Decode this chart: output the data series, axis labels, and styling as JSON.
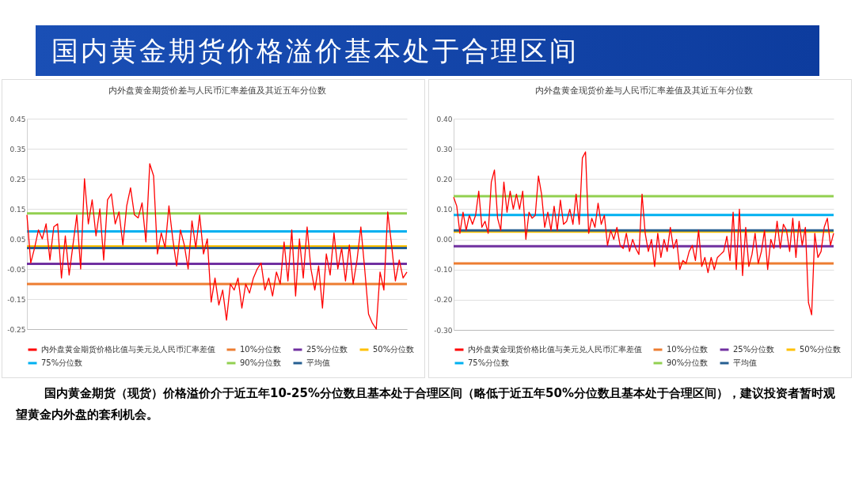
{
  "chart_data": [
    {
      "type": "other",
      "title": "国内黄金期货价格溢价基本处于合理区间"
    },
    {
      "type": "line",
      "title": "内外盘黄金期货价差与人民币汇率差值及其近五年分位数",
      "categories": [
        null,
        null,
        null,
        null,
        null,
        null,
        null,
        null,
        null,
        null,
        null,
        null,
        null,
        null,
        null,
        null,
        null,
        null,
        null,
        null,
        null,
        null,
        null,
        null,
        null,
        null,
        null,
        null,
        null,
        null,
        null,
        null,
        null,
        null,
        null,
        null,
        null,
        null,
        null,
        null,
        null,
        null,
        null,
        null,
        null,
        null,
        null,
        null,
        null,
        null,
        null,
        null,
        null,
        null,
        null,
        null,
        null,
        null,
        null,
        null,
        null,
        null,
        null,
        null,
        null,
        null,
        null,
        null,
        null,
        null,
        null,
        null,
        null,
        null,
        null,
        null,
        null,
        null,
        null,
        null,
        null,
        null,
        null,
        null,
        null,
        null,
        null,
        null,
        null,
        null,
        null,
        null,
        null,
        null,
        null,
        null,
        null,
        null,
        null,
        null
      ],
      "series": [
        {
          "name": "内外盘黄金期货价格比值与美元兑人民币汇率差值",
          "color": "#ff0000",
          "values": [
            0.13,
            -0.03,
            0.02,
            0.08,
            0.05,
            0.1,
            -0.02,
            0.09,
            0.1,
            -0.08,
            0.06,
            -0.07,
            0.03,
            0.13,
            -0.05,
            0.25,
            0.1,
            0.18,
            0.06,
            0.15,
            -0.02,
            0.18,
            0.2,
            0.1,
            0.14,
            0.03,
            0.16,
            0.22,
            0.13,
            0.12,
            0.17,
            0.04,
            0.3,
            0.26,
            0.0,
            0.07,
            0.02,
            0.16,
            0.05,
            -0.04,
            0.08,
            0.03,
            -0.05,
            0.11,
            0.02,
            0.13,
            0.0,
            0.05,
            -0.16,
            -0.08,
            -0.17,
            -0.12,
            -0.22,
            -0.1,
            -0.12,
            -0.08,
            -0.18,
            -0.1,
            -0.13,
            -0.08,
            -0.05,
            -0.03,
            -0.12,
            -0.08,
            -0.14,
            -0.06,
            -0.1,
            0.04,
            -0.09,
            0.08,
            -0.14,
            0.05,
            -0.08,
            0.09,
            -0.05,
            -0.12,
            -0.04,
            -0.18,
            0.0,
            -0.07,
            0.07,
            -0.05,
            0.02,
            -0.09,
            0.03,
            -0.1,
            -0.02,
            0.09,
            -0.05,
            -0.2,
            -0.23,
            -0.25,
            -0.06,
            -0.12,
            0.14,
            0.03,
            -0.09,
            -0.02,
            -0.08,
            -0.06
          ]
        }
      ],
      "ref_lines": [
        {
          "axis": "y",
          "value": -0.1,
          "label": "10%分位数",
          "color": "#ed7d31"
        },
        {
          "axis": "y",
          "value": -0.033,
          "label": "25%分位数",
          "color": "#7030a0"
        },
        {
          "axis": "y",
          "value": 0.025,
          "label": "50%分位数",
          "color": "#ffc000"
        },
        {
          "axis": "y",
          "value": 0.075,
          "label": "75%分位数",
          "color": "#00b0f0"
        },
        {
          "axis": "y",
          "value": 0.135,
          "label": "90%分位数",
          "color": "#92d050"
        },
        {
          "axis": "y",
          "value": 0.02,
          "label": "平均值",
          "color": "#255e91"
        }
      ],
      "ylim": [
        -0.25,
        0.45
      ],
      "yticks": [
        -0.25,
        -0.15,
        -0.05,
        0.05,
        0.15,
        0.25,
        0.35,
        0.45
      ],
      "grid": "y",
      "legend": "bottom",
      "tick_labels": "y"
    },
    {
      "type": "line",
      "title": "内外盘黄金现货价差与人民币汇率差值及其近五年分位数",
      "categories": [
        null,
        null,
        null,
        null,
        null,
        null,
        null,
        null,
        null,
        null,
        null,
        null,
        null,
        null,
        null,
        null,
        null,
        null,
        null,
        null,
        null,
        null,
        null,
        null,
        null,
        null,
        null,
        null,
        null,
        null,
        null,
        null,
        null,
        null,
        null,
        null,
        null,
        null,
        null,
        null,
        null,
        null,
        null,
        null,
        null,
        null,
        null,
        null,
        null,
        null,
        null,
        null,
        null,
        null,
        null,
        null,
        null,
        null,
        null,
        null,
        null,
        null,
        null,
        null,
        null,
        null,
        null,
        null,
        null,
        null,
        null,
        null,
        null,
        null,
        null,
        null,
        null,
        null,
        null,
        null,
        null,
        null,
        null,
        null,
        null,
        null,
        null,
        null,
        null,
        null,
        null,
        null,
        null,
        null,
        null,
        null,
        null,
        null,
        null,
        null,
        null,
        null,
        null,
        null,
        null,
        null,
        null,
        null,
        null,
        null,
        null,
        null,
        null,
        null,
        null,
        null,
        null,
        null,
        null,
        null,
        null,
        null
      ],
      "series": [
        {
          "name": "内外盘黄金现货价格比值与美元兑人民币汇率差值",
          "color": "#ff0000",
          "values": [
            0.14,
            0.11,
            0.02,
            0.09,
            0.03,
            0.08,
            0.05,
            0.08,
            0.16,
            0.04,
            0.06,
            0.02,
            0.19,
            0.23,
            0.07,
            0.03,
            0.19,
            0.09,
            0.16,
            0.1,
            0.15,
            0.1,
            0.16,
            0.0,
            0.09,
            0.07,
            0.08,
            0.21,
            0.15,
            0.04,
            0.09,
            0.03,
            0.11,
            0.03,
            0.13,
            0.05,
            0.06,
            0.1,
            0.05,
            0.15,
            0.05,
            0.27,
            0.29,
            0.02,
            0.07,
            0.04,
            0.12,
            0.05,
            0.08,
            -0.02,
            0.03,
            0.0,
            0.04,
            -0.02,
            -0.03,
            0.02,
            -0.04,
            0.0,
            -0.03,
            -0.05,
            0.15,
            0.02,
            -0.04,
            0.0,
            -0.09,
            0.02,
            -0.06,
            0.0,
            -0.04,
            0.04,
            -0.03,
            0.0,
            -0.1,
            -0.07,
            -0.08,
            -0.04,
            -0.02,
            -0.07,
            0.03,
            -0.09,
            -0.06,
            -0.11,
            -0.06,
            -0.1,
            -0.06,
            -0.05,
            -0.04,
            0.01,
            -0.07,
            0.09,
            -0.1,
            0.1,
            -0.12,
            0.04,
            -0.09,
            -0.05,
            0.02,
            -0.08,
            -0.04,
            0.03,
            -0.1,
            0.0,
            -0.03,
            0.06,
            -0.03,
            0.05,
            0.03,
            -0.04,
            0.07,
            -0.06,
            0.06,
            -0.02,
            0.04,
            -0.21,
            -0.25,
            0.02,
            -0.06,
            -0.04,
            0.04,
            0.07,
            -0.02,
            0.02
          ]
        }
      ],
      "ref_lines": [
        {
          "axis": "y",
          "value": -0.08,
          "label": "10%分位数",
          "color": "#ed7d31"
        },
        {
          "axis": "y",
          "value": -0.023,
          "label": "25%分位数",
          "color": "#7030a0"
        },
        {
          "axis": "y",
          "value": 0.026,
          "label": "50%分位数",
          "color": "#ffc000"
        },
        {
          "axis": "y",
          "value": 0.081,
          "label": "75%分位数",
          "color": "#00b0f0"
        },
        {
          "axis": "y",
          "value": 0.143,
          "label": "90%分位数",
          "color": "#92d050"
        },
        {
          "axis": "y",
          "value": 0.03,
          "label": "平均值",
          "color": "#255e91"
        }
      ],
      "ylim": [
        -0.3,
        0.4
      ],
      "yticks": [
        {
          "value": -0.3,
          "label": "-0.30"
        },
        {
          "value": -0.2,
          "label": "-0.20"
        },
        {
          "value": -0.1,
          "label": "-0.10"
        },
        {
          "value": 0,
          "label": "0.00"
        },
        {
          "value": 0.1,
          "label": "0.10"
        },
        {
          "value": 0.2,
          "label": "0.20"
        },
        {
          "value": 0.3,
          "label": "0.30"
        },
        {
          "value": 0.4,
          "label": "0.40"
        }
      ],
      "grid": "y",
      "legend": "bottom",
      "tick_labels": "y"
    },
    {
      "type": "other",
      "annotations": [
        "国内黄金期货（现货）价格溢价介于近五年10-25%分位数且基本处于合理区间（略低于近五年50%分位数且基本处于合理区间），建议投资者暂时观望黄金内外盘的套利机会。"
      ]
    }
  ]
}
